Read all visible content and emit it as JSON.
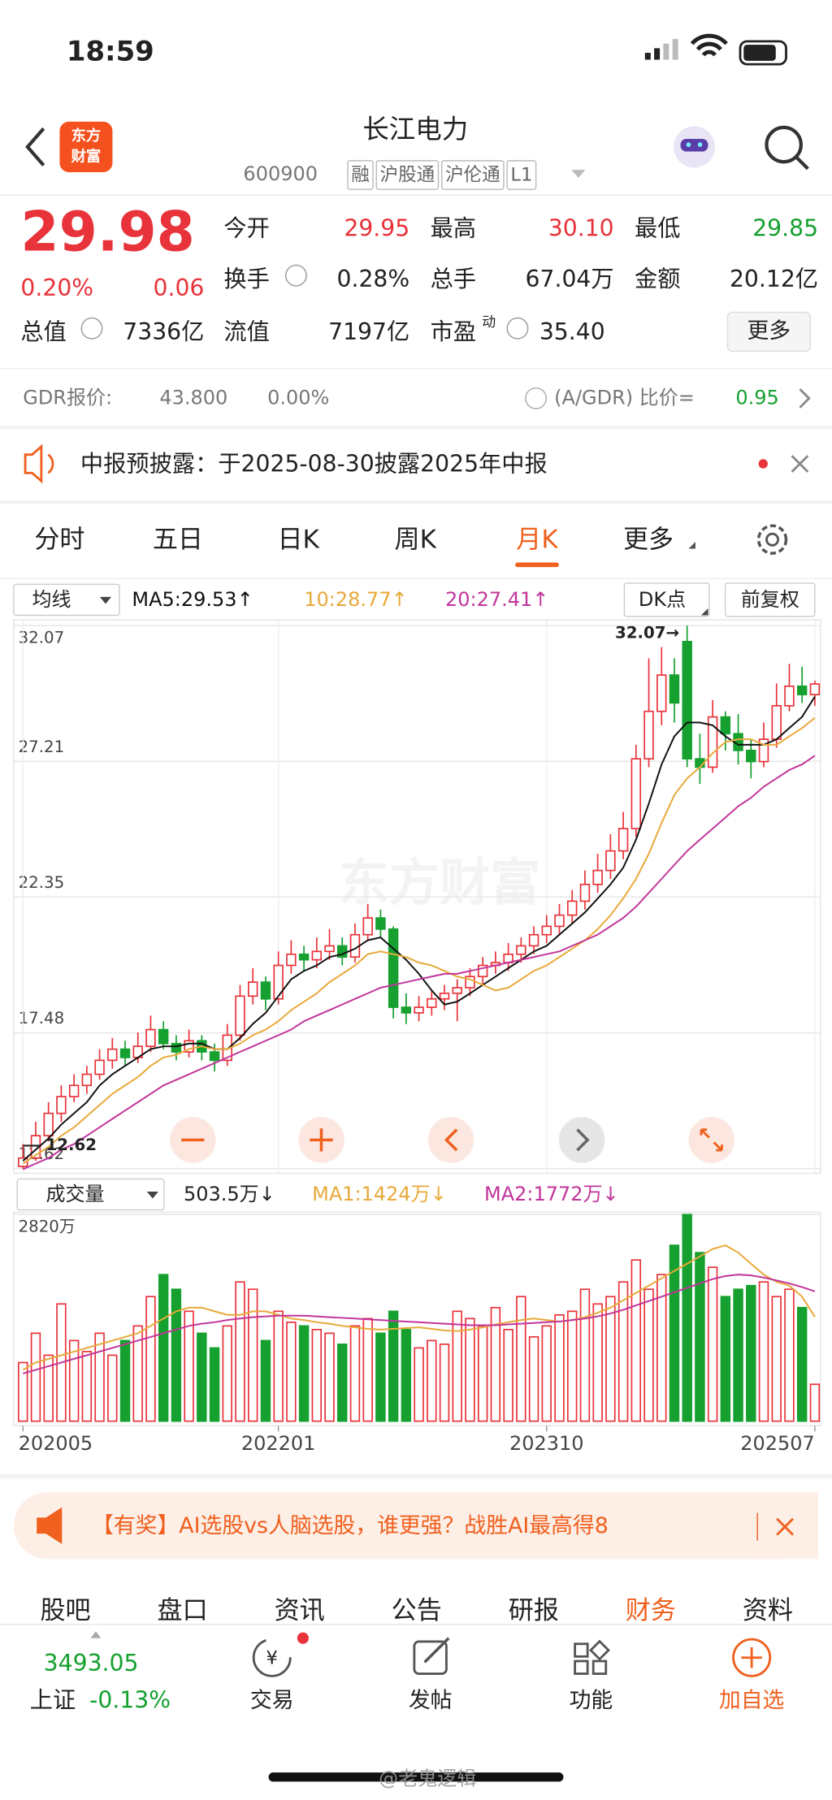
{
  "status_bar": {
    "time": "18:59"
  },
  "header": {
    "logo": [
      "东方",
      "财富"
    ],
    "title": "长江电力",
    "code": "600900",
    "tags": [
      "融",
      "沪股通",
      "沪伦通",
      "L1"
    ]
  },
  "quote": {
    "price": "29.98",
    "change_pct": "0.20%",
    "change": "0.06",
    "fields": [
      {
        "label": "今开",
        "value": "29.95"
      },
      {
        "label": "最高",
        "value": "30.10"
      },
      {
        "label": "最低",
        "value": "29.85"
      },
      {
        "label": "换手",
        "value": "0.28%"
      },
      {
        "label": "总手",
        "value": "67.04万"
      },
      {
        "label": "金额",
        "value": "20.12亿"
      },
      {
        "label": "总值",
        "value": "7336亿"
      },
      {
        "label": "流值",
        "value": "7197亿"
      },
      {
        "label": "市盈",
        "sup": "动",
        "value": "35.40"
      }
    ],
    "more": "更多"
  },
  "gdr": {
    "label": "GDR报价:",
    "price": "43.800",
    "change": "0.00%",
    "ratio_label": "(A/GDR) 比价=",
    "ratio": "0.95"
  },
  "notice": "中报预披露：于2025-08-30披露2025年中报",
  "tabs": [
    "分时",
    "五日",
    "日K",
    "周K",
    "月K",
    "更多"
  ],
  "chart_data": [
    {
      "type": "candlestick",
      "selector": "均线",
      "buttons": [
        "DK点",
        "前复权"
      ],
      "up_color": "#e8333a",
      "down_color": "#16a02f",
      "annotations": [
        "32.07→",
        "12.62"
      ],
      "ylim": [
        12.62,
        32.07
      ],
      "yticks": [
        32.07,
        27.21,
        22.35,
        17.48,
        12.62
      ],
      "grid": true,
      "candles": [
        [
          12.7,
          13.5,
          12.62,
          13.0
        ],
        [
          13.0,
          14.3,
          12.9,
          13.8
        ],
        [
          13.8,
          15.0,
          13.6,
          14.6
        ],
        [
          14.6,
          15.6,
          14.3,
          15.2
        ],
        [
          15.2,
          16.0,
          15.0,
          15.6
        ],
        [
          15.6,
          16.3,
          15.3,
          16.0
        ],
        [
          16.0,
          16.9,
          15.8,
          16.5
        ],
        [
          16.5,
          17.3,
          16.2,
          16.9
        ],
        [
          16.9,
          17.2,
          16.3,
          16.6
        ],
        [
          16.6,
          17.5,
          16.4,
          17.0
        ],
        [
          17.0,
          18.1,
          16.8,
          17.6
        ],
        [
          17.6,
          17.9,
          16.9,
          17.1
        ],
        [
          17.1,
          17.4,
          16.5,
          16.8
        ],
        [
          16.8,
          17.6,
          16.6,
          17.2
        ],
        [
          17.2,
          17.4,
          16.5,
          16.8
        ],
        [
          16.8,
          17.1,
          16.1,
          16.5
        ],
        [
          16.5,
          17.8,
          16.3,
          17.4
        ],
        [
          17.4,
          19.2,
          17.2,
          18.8
        ],
        [
          18.8,
          19.8,
          18.5,
          19.3
        ],
        [
          19.3,
          19.5,
          18.3,
          18.7
        ],
        [
          18.7,
          20.4,
          18.5,
          19.9
        ],
        [
          19.9,
          20.8,
          19.6,
          20.3
        ],
        [
          20.3,
          20.6,
          19.7,
          20.1
        ],
        [
          20.1,
          20.9,
          19.8,
          20.4
        ],
        [
          20.4,
          21.2,
          20.1,
          20.6
        ],
        [
          20.6,
          20.9,
          19.9,
          20.2
        ],
        [
          20.2,
          21.4,
          20.0,
          21.0
        ],
        [
          21.0,
          22.1,
          20.8,
          21.6
        ],
        [
          21.6,
          21.9,
          20.9,
          21.2
        ],
        [
          21.2,
          21.3,
          18.0,
          18.4
        ],
        [
          18.4,
          18.9,
          17.8,
          18.2
        ],
        [
          18.2,
          18.8,
          17.9,
          18.4
        ],
        [
          18.4,
          19.0,
          18.1,
          18.7
        ],
        [
          18.7,
          19.2,
          18.3,
          18.9
        ],
        [
          18.9,
          19.4,
          17.9,
          19.1
        ],
        [
          19.1,
          19.8,
          18.8,
          19.5
        ],
        [
          19.5,
          20.2,
          19.2,
          19.9
        ],
        [
          19.9,
          20.4,
          19.6,
          20.0
        ],
        [
          20.0,
          20.7,
          19.7,
          20.3
        ],
        [
          20.3,
          20.9,
          20.0,
          20.6
        ],
        [
          20.6,
          21.3,
          20.3,
          21.0
        ],
        [
          21.0,
          21.7,
          20.7,
          21.3
        ],
        [
          21.3,
          22.1,
          21.0,
          21.7
        ],
        [
          21.7,
          22.6,
          21.4,
          22.2
        ],
        [
          22.2,
          23.3,
          21.9,
          22.8
        ],
        [
          22.8,
          23.9,
          22.5,
          23.3
        ],
        [
          23.3,
          24.6,
          23.0,
          24.0
        ],
        [
          24.0,
          25.4,
          23.7,
          24.8
        ],
        [
          24.8,
          27.8,
          24.5,
          27.3
        ],
        [
          27.3,
          30.9,
          27.0,
          29.0
        ],
        [
          29.0,
          31.3,
          28.5,
          30.3
        ],
        [
          30.3,
          30.9,
          28.6,
          29.3
        ],
        [
          31.5,
          32.07,
          27.0,
          27.3
        ],
        [
          27.3,
          28.2,
          26.4,
          27.0
        ],
        [
          27.0,
          29.4,
          26.8,
          28.8
        ],
        [
          28.8,
          29.0,
          27.6,
          28.2
        ],
        [
          28.2,
          28.9,
          27.1,
          27.6
        ],
        [
          27.6,
          28.0,
          26.6,
          27.2
        ],
        [
          27.2,
          28.6,
          27.0,
          28.0
        ],
        [
          28.0,
          30.0,
          27.7,
          29.2
        ],
        [
          29.2,
          30.7,
          29.0,
          29.9
        ],
        [
          29.9,
          30.6,
          29.3,
          29.6
        ],
        [
          29.6,
          30.1,
          29.2,
          29.98
        ]
      ],
      "series": [
        {
          "name": "MA5:29.53↑",
          "color": "#111111",
          "values": [
            12.9,
            13.3,
            13.7,
            14.2,
            14.6,
            15.0,
            15.6,
            16.0,
            16.3,
            16.6,
            16.9,
            17.0,
            17.0,
            17.1,
            17.1,
            16.9,
            16.9,
            17.3,
            17.8,
            18.2,
            18.8,
            19.4,
            19.7,
            19.9,
            20.2,
            20.3,
            20.5,
            20.8,
            20.9,
            20.5,
            20.1,
            19.6,
            19.0,
            18.5,
            18.6,
            18.9,
            19.2,
            19.5,
            19.8,
            20.1,
            20.4,
            20.6,
            21.0,
            21.4,
            21.8,
            22.3,
            22.8,
            23.4,
            24.4,
            25.7,
            27.1,
            28.1,
            28.6,
            28.6,
            28.5,
            28.1,
            27.8,
            27.8,
            27.8,
            28.0,
            28.4,
            28.8,
            29.53
          ]
        },
        {
          "name": "10:28.77↑",
          "color": "#e8a93a",
          "values": [
            12.8,
            13.1,
            13.4,
            13.8,
            14.1,
            14.5,
            14.9,
            15.3,
            15.6,
            15.9,
            16.3,
            16.6,
            16.7,
            16.9,
            17.0,
            16.9,
            16.9,
            17.1,
            17.4,
            17.6,
            17.9,
            18.3,
            18.6,
            18.9,
            19.3,
            19.6,
            19.9,
            20.3,
            20.4,
            20.3,
            20.2,
            20.0,
            19.9,
            19.7,
            19.5,
            19.4,
            19.2,
            19.0,
            19.1,
            19.4,
            19.7,
            19.9,
            20.2,
            20.5,
            20.8,
            21.2,
            21.7,
            22.3,
            23.0,
            23.9,
            25.0,
            26.0,
            26.6,
            27.0,
            27.5,
            27.9,
            28.0,
            28.0,
            27.8,
            27.8,
            28.1,
            28.4,
            28.77
          ]
        },
        {
          "name": "20:27.41↑",
          "color": "#c2359b",
          "values": [
            12.6,
            12.8,
            13.0,
            13.3,
            13.5,
            13.8,
            14.1,
            14.4,
            14.7,
            15.0,
            15.3,
            15.6,
            15.8,
            16.0,
            16.2,
            16.4,
            16.6,
            16.8,
            17.0,
            17.2,
            17.4,
            17.6,
            17.9,
            18.1,
            18.3,
            18.5,
            18.7,
            18.9,
            19.1,
            19.2,
            19.3,
            19.4,
            19.5,
            19.6,
            19.6,
            19.7,
            19.8,
            19.9,
            20.0,
            20.1,
            20.2,
            20.3,
            20.4,
            20.6,
            20.8,
            21.0,
            21.3,
            21.6,
            22.0,
            22.5,
            23.0,
            23.5,
            24.0,
            24.4,
            24.8,
            25.2,
            25.6,
            25.9,
            26.3,
            26.6,
            26.9,
            27.1,
            27.41
          ]
        }
      ]
    },
    {
      "type": "bar",
      "selector": "成交量",
      "current": "503.5万↓",
      "ylim": [
        0,
        2820
      ],
      "yticks": [
        {
          "value": 2820,
          "label": "2820万"
        }
      ],
      "categories": [
        "202005",
        null,
        null,
        null,
        null,
        null,
        null,
        null,
        null,
        null,
        null,
        null,
        null,
        null,
        null,
        null,
        null,
        null,
        null,
        null,
        "202201",
        null,
        null,
        null,
        null,
        null,
        null,
        null,
        null,
        null,
        null,
        null,
        null,
        null,
        null,
        null,
        null,
        null,
        null,
        null,
        null,
        "202310",
        null,
        null,
        null,
        null,
        null,
        null,
        null,
        null,
        null,
        null,
        null,
        null,
        null,
        null,
        null,
        null,
        null,
        null,
        null,
        null,
        "202507"
      ],
      "values": [
        800,
        1200,
        900,
        1600,
        1100,
        950,
        1200,
        900,
        1100,
        1300,
        1700,
        2000,
        1800,
        1500,
        1200,
        1000,
        1300,
        1900,
        1800,
        1100,
        1500,
        1350,
        1300,
        1250,
        1200,
        1050,
        1300,
        1400,
        1200,
        1500,
        1250,
        1000,
        1100,
        1050,
        1500,
        1400,
        1300,
        1550,
        1250,
        1700,
        1150,
        1300,
        1450,
        1500,
        1800,
        1600,
        1700,
        1900,
        2200,
        1800,
        2000,
        2400,
        2820,
        2300,
        2100,
        1700,
        1800,
        1850,
        1900,
        1700,
        1800,
        1550,
        503.5
      ],
      "series": [
        {
          "name": "MA1:1424万↓",
          "color": "#e8a93a",
          "values": [
            700,
            800,
            850,
            900,
            950,
            1000,
            1050,
            1100,
            1150,
            1200,
            1300,
            1400,
            1500,
            1550,
            1550,
            1500,
            1450,
            1450,
            1500,
            1500,
            1450,
            1400,
            1380,
            1350,
            1330,
            1300,
            1280,
            1260,
            1250,
            1260,
            1270,
            1280,
            1260,
            1240,
            1230,
            1250,
            1280,
            1320,
            1350,
            1380,
            1400,
            1380,
            1360,
            1380,
            1420,
            1480,
            1550,
            1650,
            1750,
            1850,
            1950,
            2050,
            2150,
            2250,
            2350,
            2400,
            2300,
            2150,
            2000,
            1900,
            1850,
            1700,
            1424
          ]
        },
        {
          "name": "MA2:1772万↓",
          "color": "#c2359b",
          "values": [
            650,
            700,
            750,
            800,
            850,
            900,
            950,
            1000,
            1050,
            1100,
            1150,
            1200,
            1250,
            1300,
            1330,
            1350,
            1380,
            1400,
            1420,
            1430,
            1440,
            1440,
            1440,
            1430,
            1420,
            1410,
            1400,
            1390,
            1380,
            1370,
            1360,
            1350,
            1340,
            1330,
            1320,
            1310,
            1310,
            1310,
            1320,
            1330,
            1340,
            1350,
            1360,
            1380,
            1400,
            1430,
            1470,
            1520,
            1580,
            1640,
            1700,
            1760,
            1820,
            1880,
            1940,
            1980,
            2000,
            1990,
            1960,
            1920,
            1880,
            1830,
            1772
          ]
        }
      ]
    }
  ],
  "banner": "【有奖】AI选股vs人脑选股，谁更强？战胜AI最高得8",
  "info_tabs": [
    "股吧",
    "盘口",
    "资讯",
    "公告",
    "研报",
    "财务",
    "资料"
  ],
  "bottom_nav": {
    "index_value": "3493.05",
    "index_name": "上证",
    "index_change": "-0.13%",
    "items": [
      "交易",
      "发帖",
      "功能",
      "加自选"
    ]
  },
  "watermark": "@老鬼逻辑"
}
